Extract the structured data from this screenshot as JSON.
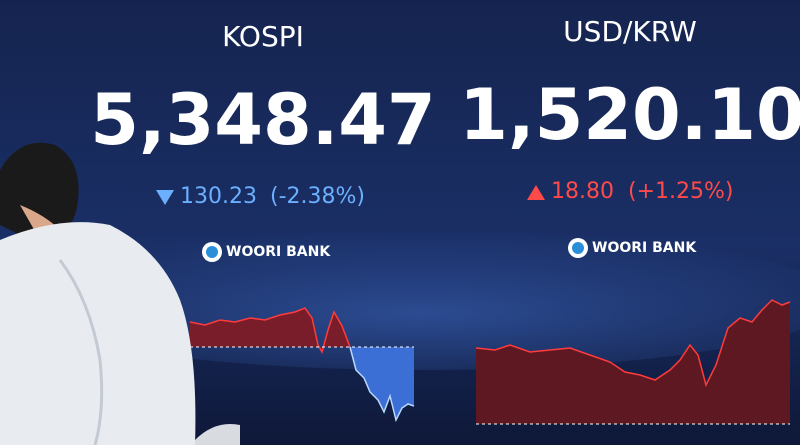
{
  "board": {
    "kospi": {
      "name": "KOSPI",
      "value": "5,348.47",
      "change": "130.23",
      "change_pct": "(-2.38%)",
      "sponsor": "WOORI BANK"
    },
    "usdkrw": {
      "name": "USD/KRW",
      "value": "1,520.10",
      "change": "18.80",
      "change_pct": "(+1.25%)",
      "sponsor": "WOORI BANK"
    }
  }
}
